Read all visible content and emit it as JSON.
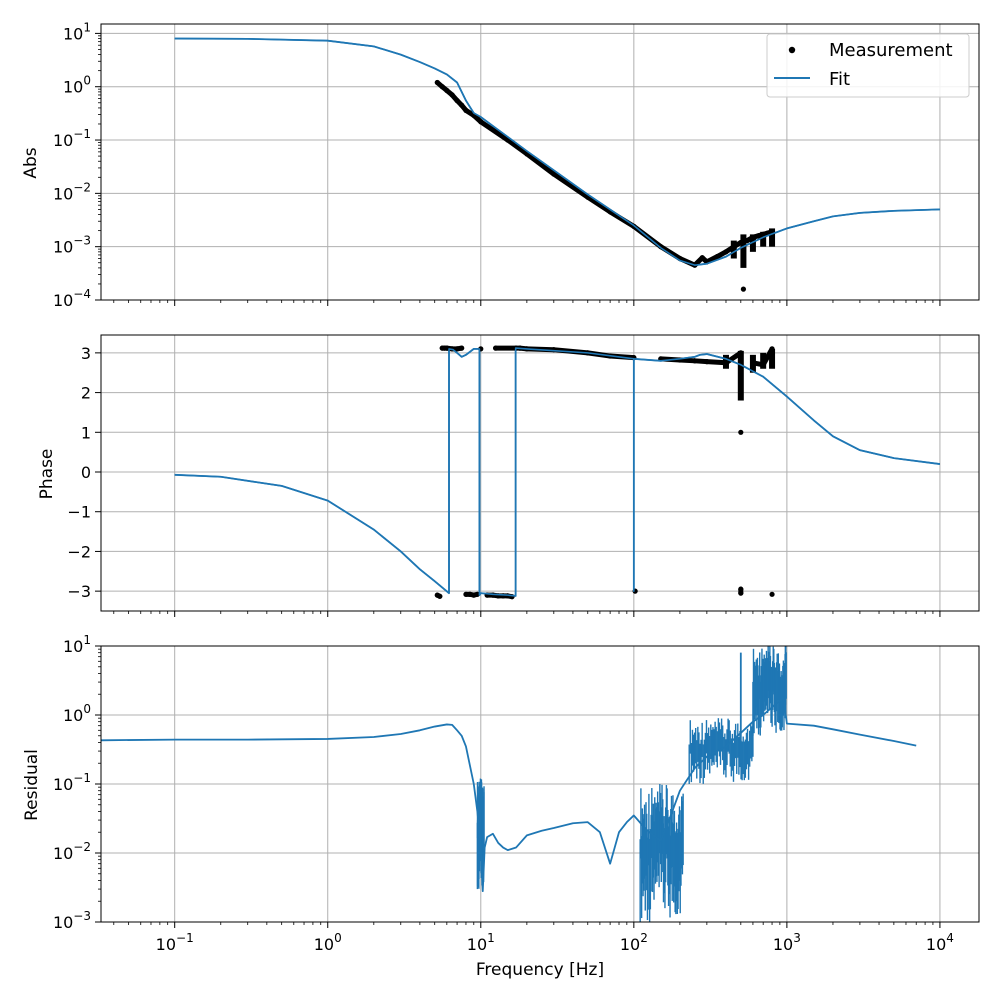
{
  "colors": {
    "fit": "#1f77b4",
    "measurement": "#000000",
    "grid": "#b0b0b0"
  },
  "legend": {
    "placement": "upper-right of top panel",
    "entries": [
      {
        "label": "Measurement",
        "marker": "dot",
        "color": "#000000"
      },
      {
        "label": "Fit",
        "marker": "line",
        "color": "#1f77b4"
      }
    ]
  },
  "chart_data": [
    {
      "type": "scatter",
      "panel": "top",
      "xlabel": "",
      "ylabel": "Abs",
      "xscale": "log",
      "yscale": "log",
      "xlim": [
        0.033,
        18000
      ],
      "ylim": [
        0.0001,
        15
      ],
      "grid": true,
      "x_ticks": [
        {
          "exp": "−1"
        },
        {
          "exp": "0"
        },
        {
          "exp": "1"
        },
        {
          "exp": "2"
        },
        {
          "exp": "3"
        },
        {
          "exp": "4"
        }
      ],
      "y_ticks": [
        {
          "exp": "−4"
        },
        {
          "exp": "−3"
        },
        {
          "exp": "−2"
        },
        {
          "exp": "−1"
        },
        {
          "exp": "0"
        },
        {
          "exp": "1"
        }
      ],
      "series": [
        {
          "name": "Fit",
          "style": "line",
          "x": [
            0.1,
            0.3,
            1,
            2,
            3,
            4,
            5,
            6,
            7,
            8,
            9,
            10,
            20,
            50,
            100,
            150,
            200,
            250,
            300,
            400,
            500,
            700,
            1000,
            1500,
            2000,
            3000,
            5000,
            10000
          ],
          "y": [
            8.0,
            7.9,
            7.3,
            5.7,
            4.0,
            2.9,
            2.2,
            1.7,
            1.2,
            0.55,
            0.32,
            0.27,
            0.062,
            0.0095,
            0.0025,
            0.00095,
            0.00055,
            0.00045,
            0.00048,
            0.00065,
            0.00095,
            0.0015,
            0.0022,
            0.003,
            0.0037,
            0.0043,
            0.0047,
            0.005
          ]
        },
        {
          "name": "Measurement",
          "style": "markers",
          "x": [
            5.2,
            5.6,
            6.0,
            6.5,
            7.0,
            7.5,
            8.0,
            9.0,
            10,
            15,
            20,
            30,
            50,
            70,
            100,
            150,
            200,
            250,
            280,
            300,
            350,
            400,
            450,
            500,
            520,
            550,
            600,
            650,
            700,
            750,
            800
          ],
          "y": [
            1.2,
            1.0,
            0.85,
            0.7,
            0.55,
            0.45,
            0.36,
            0.29,
            0.22,
            0.1,
            0.055,
            0.023,
            0.0085,
            0.0045,
            0.0024,
            0.001,
            0.0006,
            0.00045,
            0.00062,
            0.00052,
            0.00065,
            0.0008,
            0.001,
            0.0012,
            0.00016,
            0.0013,
            0.0015,
            0.0016,
            0.0017,
            0.0018,
            0.0019
          ],
          "spread_x": [
            450,
            520,
            600,
            700,
            800
          ],
          "spread_y_low": [
            0.0006,
            0.0004,
            0.0008,
            0.001,
            0.001
          ],
          "spread_y_high": [
            0.0013,
            0.0017,
            0.0017,
            0.0019,
            0.0022
          ]
        }
      ]
    },
    {
      "type": "scatter",
      "panel": "middle",
      "xlabel": "",
      "ylabel": "Phase",
      "xscale": "log",
      "yscale": "linear",
      "xlim": [
        0.033,
        18000
      ],
      "ylim": [
        -3.5,
        3.45
      ],
      "grid": true,
      "y_ticks": [
        "−3",
        "−2",
        "−1",
        "0",
        "1",
        "2",
        "3"
      ],
      "y_tick_values": [
        -3,
        -2,
        -1,
        0,
        1,
        2,
        3
      ],
      "series": [
        {
          "name": "Fit",
          "style": "line",
          "x": [
            0.1,
            0.2,
            0.5,
            1,
            2,
            3,
            4,
            5,
            6.2,
            6.2,
            6.6,
            7.0,
            7.5,
            8.0,
            9.0,
            9.8,
            9.8,
            10,
            12,
            15,
            16.9,
            16.9,
            20,
            50,
            100,
            100,
            100,
            150,
            200,
            250,
            270,
            300,
            400,
            500,
            700,
            1000,
            1500,
            2000,
            3000,
            5000,
            10000
          ],
          "y": [
            -0.07,
            -0.12,
            -0.35,
            -0.72,
            -1.45,
            -2.0,
            -2.45,
            -2.75,
            -3.05,
            3.1,
            3.08,
            3.0,
            2.9,
            2.95,
            3.1,
            3.1,
            -3.1,
            -3.05,
            -3.08,
            -3.1,
            -3.12,
            3.12,
            3.1,
            3.0,
            2.85,
            -3.0,
            2.85,
            2.8,
            2.85,
            2.9,
            2.95,
            2.97,
            2.85,
            2.7,
            2.4,
            1.9,
            1.3,
            0.9,
            0.55,
            0.35,
            0.2
          ]
        },
        {
          "name": "Measurement",
          "style": "markers",
          "x": [
            5.2,
            5.4,
            5.6,
            5.8,
            6.0,
            6.5,
            7.0,
            7.5,
            8.0,
            8.5,
            9.0,
            9.5,
            10,
            11,
            12,
            13,
            14,
            15,
            16,
            12.5,
            17,
            18,
            20,
            30,
            50,
            70,
            100,
            102,
            150,
            200,
            250,
            300,
            400,
            500,
            500,
            500,
            500,
            600,
            700,
            800,
            800
          ],
          "y": [
            -3.1,
            -3.13,
            3.12,
            3.12,
            3.12,
            3.1,
            3.1,
            3.12,
            -3.08,
            -3.08,
            -3.1,
            -3.08,
            3.1,
            -3.1,
            -3.1,
            -3.12,
            -3.12,
            -3.12,
            -3.14,
            3.12,
            3.12,
            3.12,
            3.1,
            3.08,
            3.0,
            2.92,
            2.88,
            -3.0,
            2.85,
            2.82,
            2.8,
            2.78,
            2.75,
            3.0,
            1.0,
            -2.95,
            -3.05,
            2.75,
            2.7,
            3.1,
            -3.08
          ],
          "spread_x": [
            400,
            500,
            600,
            700,
            800
          ],
          "spread_y_low": [
            2.6,
            1.8,
            2.5,
            2.6,
            2.6
          ],
          "spread_y_high": [
            2.95,
            3.05,
            2.95,
            3.0,
            3.1
          ]
        }
      ]
    },
    {
      "type": "line",
      "panel": "bottom",
      "xlabel": "Frequency [Hz]",
      "ylabel": "Residual",
      "xscale": "log",
      "yscale": "log",
      "xlim": [
        0.033,
        18000
      ],
      "ylim": [
        0.001,
        10
      ],
      "grid": true,
      "x_ticks": [
        {
          "exp": "−1"
        },
        {
          "exp": "0"
        },
        {
          "exp": "1"
        },
        {
          "exp": "2"
        },
        {
          "exp": "3"
        },
        {
          "exp": "4"
        }
      ],
      "y_ticks": [
        {
          "exp": "−3"
        },
        {
          "exp": "−2"
        },
        {
          "exp": "−1"
        },
        {
          "exp": "0"
        },
        {
          "exp": "1"
        }
      ],
      "series": [
        {
          "name": "Residual",
          "style": "line",
          "x": [
            0.033,
            0.1,
            0.3,
            1,
            2,
            3,
            4,
            5,
            6,
            6.5,
            7,
            7.5,
            8,
            9,
            9.5,
            10,
            10.3,
            10.6,
            11,
            12,
            13,
            14,
            15,
            17,
            20,
            25,
            30,
            40,
            50,
            60,
            70,
            75,
            80,
            90,
            100,
            120,
            150,
            170,
            200,
            250,
            300,
            400,
            500,
            600,
            700,
            800,
            950,
            1000,
            1500,
            2000,
            3000,
            5000,
            7000
          ],
          "y": [
            0.43,
            0.44,
            0.44,
            0.45,
            0.48,
            0.53,
            0.6,
            0.68,
            0.73,
            0.72,
            0.6,
            0.5,
            0.35,
            0.1,
            0.04,
            0.012,
            0.0028,
            0.012,
            0.017,
            0.019,
            0.014,
            0.012,
            0.011,
            0.012,
            0.018,
            0.021,
            0.023,
            0.027,
            0.028,
            0.02,
            0.007,
            0.012,
            0.02,
            0.028,
            0.035,
            0.022,
            0.015,
            0.03,
            0.08,
            0.17,
            0.25,
            0.35,
            0.55,
            0.8,
            1.0,
            1.3,
            1.8,
            0.75,
            0.7,
            0.62,
            0.52,
            0.42,
            0.36
          ]
        }
      ],
      "noise_bands": [
        {
          "x": [
            9.5,
            10.5
          ],
          "low": 0.003,
          "high": 0.12
        },
        {
          "x": [
            110,
            210
          ],
          "low": 0.001,
          "high": 0.1
        },
        {
          "x": [
            230,
            600
          ],
          "low": 0.1,
          "high": 0.9
        },
        {
          "x": [
            600,
            990
          ],
          "low": 0.5,
          "high": 10
        }
      ],
      "spikes": [
        {
          "x": 500,
          "low": 0.2,
          "high": 8
        },
        {
          "x": 980,
          "low": 0.9,
          "high": 10
        }
      ]
    }
  ]
}
